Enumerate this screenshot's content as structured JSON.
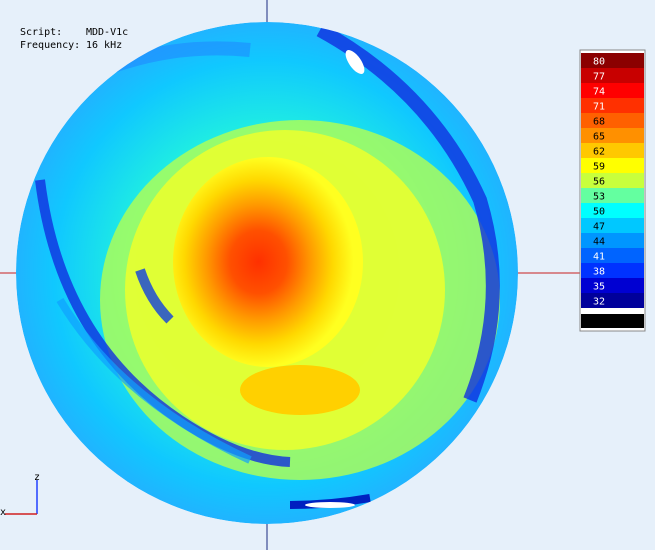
{
  "info": {
    "script_label": "Script:",
    "script": "MDD-V1c",
    "frequency_label": "Frequency:",
    "frequency": "16 kHz"
  },
  "colorbar": {
    "ticks": [
      80,
      77,
      74,
      71,
      68,
      65,
      62,
      59,
      56,
      53,
      50,
      47,
      44,
      41,
      38,
      35,
      32
    ],
    "colors": [
      "#8b0000",
      "#c80000",
      "#ff0000",
      "#ff3000",
      "#ff6000",
      "#ff9000",
      "#ffc800",
      "#ffff00",
      "#c8ff3c",
      "#64ffa0",
      "#00ffff",
      "#00c8ff",
      "#0096ff",
      "#0064ff",
      "#0032ff",
      "#0000d2",
      "#00009b"
    ],
    "below_color": "#000000"
  },
  "axes": {
    "z": "z",
    "x": "x"
  }
}
